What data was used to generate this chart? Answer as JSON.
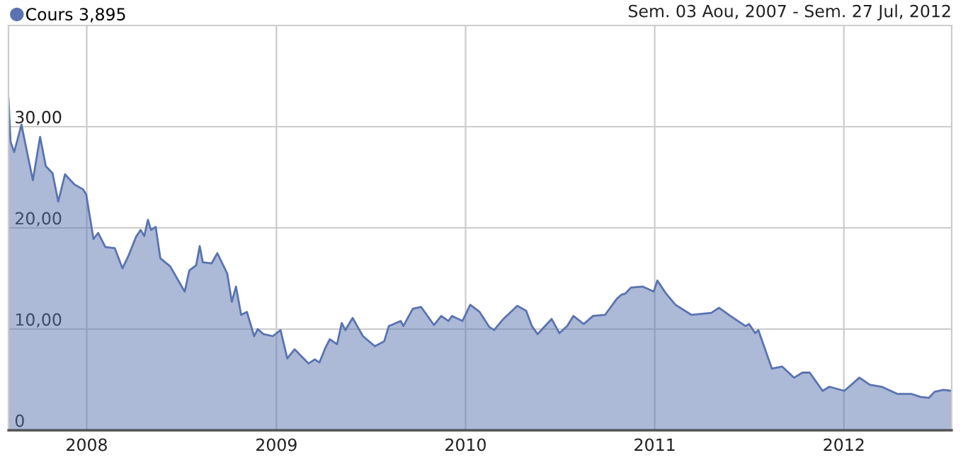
{
  "chart_data": {
    "type": "area",
    "subtitle": "Sem. 03 Aou, 2007 - Sem. 27 Jul, 2012",
    "legend": "top left",
    "grid": true,
    "xlim": [
      "2007-08-03",
      "2012-07-27"
    ],
    "xticks": [
      {
        "value": "2008-01-01",
        "label": "2008"
      },
      {
        "value": "2009-01-01",
        "label": "2009"
      },
      {
        "value": "2010-01-01",
        "label": "2010"
      },
      {
        "value": "2011-01-01",
        "label": "2011"
      },
      {
        "value": "2012-01-01",
        "label": "2012"
      }
    ],
    "ylim": [
      0,
      40
    ],
    "yticks": [
      {
        "value": 0,
        "label": "0"
      },
      {
        "value": 10,
        "label": "10,00"
      },
      {
        "value": 20,
        "label": "20,00"
      },
      {
        "value": 30,
        "label": "30,00"
      }
    ],
    "series": [
      {
        "name": "Cours 3,895",
        "color": "#5a73b0",
        "x": [
          "2007-08-03",
          "2007-08-07",
          "2007-08-14",
          "2007-08-28",
          "2007-09-19",
          "2007-10-03",
          "2007-10-14",
          "2007-10-27",
          "2007-11-07",
          "2007-11-20",
          "2007-12-08",
          "2007-12-25",
          "2007-12-31",
          "2008-01-14",
          "2008-01-23",
          "2008-02-06",
          "2008-02-24",
          "2008-03-10",
          "2008-03-22",
          "2008-04-05",
          "2008-04-14",
          "2008-04-21",
          "2008-04-28",
          "2008-05-04",
          "2008-05-13",
          "2008-05-22",
          "2008-06-10",
          "2008-07-08",
          "2008-07-17",
          "2008-07-30",
          "2008-08-06",
          "2008-08-12",
          "2008-08-29",
          "2008-09-09",
          "2008-09-28",
          "2008-10-07",
          "2008-10-15",
          "2008-10-25",
          "2008-11-05",
          "2008-11-19",
          "2008-11-26",
          "2008-12-07",
          "2008-12-25",
          "2009-01-09",
          "2009-01-22",
          "2009-02-05",
          "2009-03-04",
          "2009-03-16",
          "2009-03-25",
          "2009-04-05",
          "2009-04-14",
          "2009-04-28",
          "2009-05-07",
          "2009-05-14",
          "2009-05-28",
          "2009-06-17",
          "2009-07-10",
          "2009-07-28",
          "2009-08-06",
          "2009-08-29",
          "2009-09-03",
          "2009-09-21",
          "2009-10-07",
          "2009-11-01",
          "2009-11-15",
          "2009-11-29",
          "2009-12-06",
          "2009-12-26",
          "2010-01-10",
          "2010-01-28",
          "2010-02-16",
          "2010-02-25",
          "2010-03-15",
          "2010-04-11",
          "2010-04-28",
          "2010-05-09",
          "2010-05-20",
          "2010-06-16",
          "2010-07-01",
          "2010-07-16",
          "2010-07-28",
          "2010-08-17",
          "2010-09-04",
          "2010-09-27",
          "2010-10-20",
          "2010-10-29",
          "2010-11-05",
          "2010-11-16",
          "2010-12-09",
          "2010-12-30",
          "2011-01-06",
          "2011-01-23",
          "2011-02-10",
          "2011-03-13",
          "2011-04-20",
          "2011-05-05",
          "2011-05-27",
          "2011-06-25",
          "2011-07-02",
          "2011-07-14",
          "2011-07-20",
          "2011-08-15",
          "2011-09-04",
          "2011-09-27",
          "2011-10-13",
          "2011-10-27",
          "2011-11-21",
          "2011-12-04",
          "2012-01-02",
          "2012-01-31",
          "2012-02-20",
          "2012-03-14",
          "2012-04-13",
          "2012-05-10",
          "2012-05-28",
          "2012-06-13",
          "2012-06-24",
          "2012-07-11",
          "2012-07-27"
        ],
        "values": [
          32.8,
          28.5,
          27.5,
          30.2,
          24.7,
          29.0,
          26.1,
          25.4,
          22.6,
          25.3,
          24.3,
          23.8,
          23.3,
          18.9,
          19.5,
          18.1,
          18.0,
          16.0,
          17.3,
          19.1,
          19.8,
          19.2,
          20.8,
          19.8,
          20.1,
          17.0,
          16.2,
          13.7,
          15.8,
          16.3,
          18.2,
          16.6,
          16.5,
          17.5,
          15.5,
          12.7,
          14.2,
          11.4,
          11.7,
          9.3,
          10.0,
          9.5,
          9.3,
          9.9,
          7.1,
          8.0,
          6.6,
          7.0,
          6.7,
          8.1,
          9.0,
          8.5,
          10.6,
          9.9,
          11.1,
          9.3,
          8.3,
          8.8,
          10.3,
          10.8,
          10.3,
          12.0,
          12.2,
          10.4,
          11.3,
          10.8,
          11.3,
          10.8,
          12.4,
          11.7,
          10.2,
          9.9,
          11.0,
          12.3,
          11.8,
          10.3,
          9.5,
          11.0,
          9.6,
          10.3,
          11.3,
          10.5,
          11.3,
          11.4,
          13.0,
          13.4,
          13.5,
          14.1,
          14.2,
          13.7,
          14.8,
          13.5,
          12.4,
          11.4,
          11.6,
          12.1,
          11.3,
          10.3,
          10.5,
          9.6,
          9.9,
          6.1,
          6.3,
          5.2,
          5.7,
          5.7,
          3.9,
          4.3,
          3.9,
          5.2,
          4.5,
          4.3,
          3.6,
          3.6,
          3.3,
          3.2,
          3.8,
          4.0,
          3.9
        ]
      }
    ]
  }
}
